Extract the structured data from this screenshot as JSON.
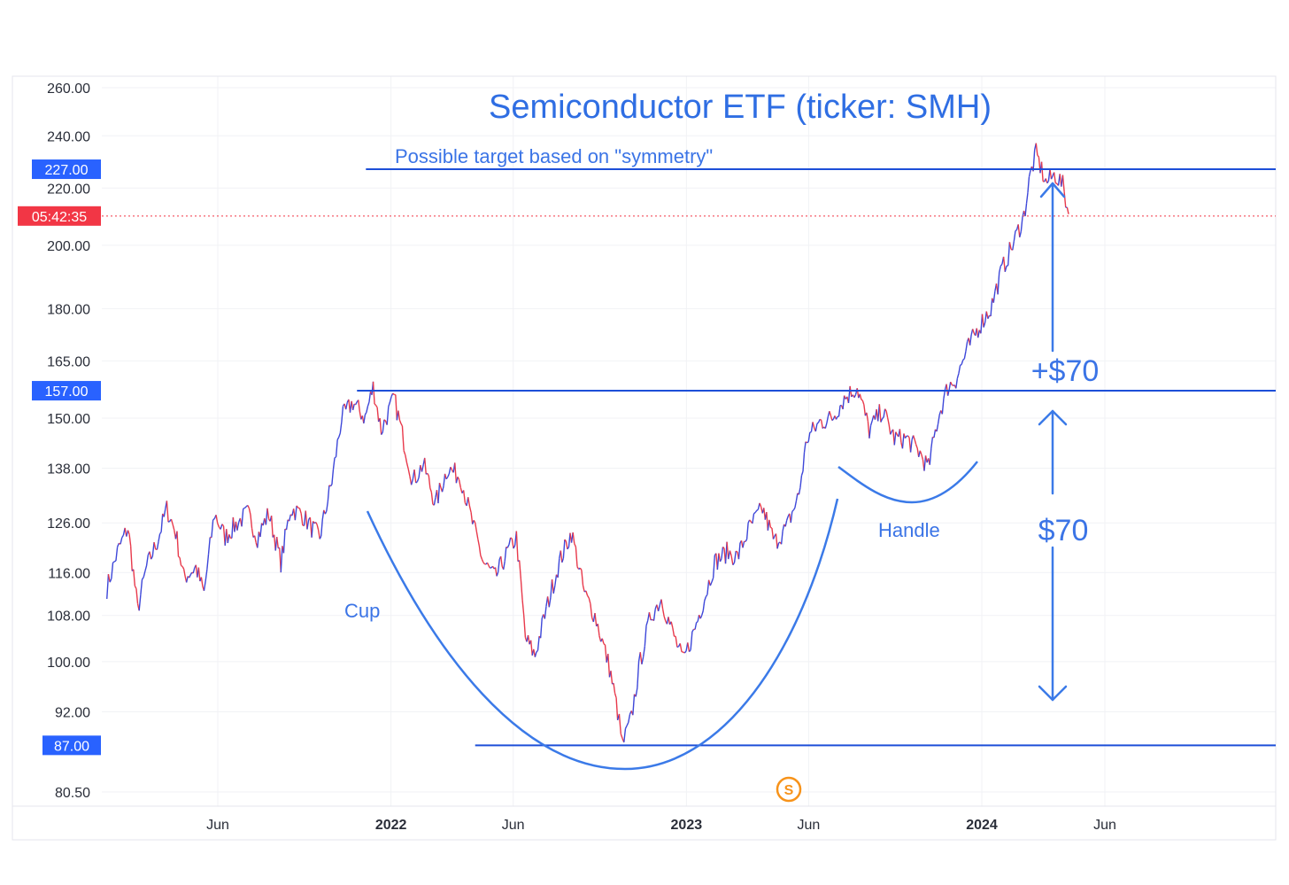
{
  "chart_data": {
    "type": "line",
    "title": "Semiconductor ETF (ticker: SMH)",
    "xlabel": "",
    "ylabel": "",
    "y_scale": "log",
    "ylim": [
      78,
      268
    ],
    "y_ticks": [
      "260.00",
      "240.00",
      "220.00",
      "200.00",
      "180.00",
      "165.00",
      "150.00",
      "138.00",
      "126.00",
      "116.00",
      "108.00",
      "100.00",
      "92.00",
      "80.50"
    ],
    "x_ticks": [
      {
        "label": "Jun",
        "date": "2021-06-01",
        "bold": false
      },
      {
        "label": "2022",
        "date": "2022-01-01",
        "bold": true
      },
      {
        "label": "Jun",
        "date": "2022-06-01",
        "bold": false
      },
      {
        "label": "2023",
        "date": "2023-01-01",
        "bold": true
      },
      {
        "label": "Jun",
        "date": "2023-06-01",
        "bold": false
      },
      {
        "label": "2024",
        "date": "2024-01-01",
        "bold": true
      },
      {
        "label": "Jun",
        "date": "2024-06-01",
        "bold": false
      }
    ],
    "xlim": [
      "2021-01-06",
      "2024-12-20"
    ],
    "grid": true,
    "series_colors": [
      "#3d47d9",
      "#e8394b"
    ],
    "series": [
      {
        "values": [
          [
            "2021-01-15",
            113
          ],
          [
            "2021-01-28",
            120
          ],
          [
            "2021-02-10",
            125
          ],
          [
            "2021-02-22",
            109
          ],
          [
            "2021-03-05",
            117
          ],
          [
            "2021-03-18",
            122
          ],
          [
            "2021-03-30",
            129
          ],
          [
            "2021-04-10",
            124
          ],
          [
            "2021-04-20",
            115
          ],
          [
            "2021-05-05",
            117
          ],
          [
            "2021-05-15",
            112
          ],
          [
            "2021-05-28",
            128
          ],
          [
            "2021-06-10",
            123
          ],
          [
            "2021-06-25",
            126
          ],
          [
            "2021-07-08",
            128
          ],
          [
            "2021-07-20",
            123
          ],
          [
            "2021-08-03",
            128
          ],
          [
            "2021-08-18",
            118
          ],
          [
            "2021-08-30",
            129
          ],
          [
            "2021-09-12",
            128
          ],
          [
            "2021-09-25",
            125
          ],
          [
            "2021-10-05",
            123
          ],
          [
            "2021-10-20",
            135
          ],
          [
            "2021-11-01",
            150
          ],
          [
            "2021-11-15",
            154
          ],
          [
            "2021-11-30",
            150
          ],
          [
            "2021-12-10",
            158
          ],
          [
            "2021-12-20",
            147
          ],
          [
            "2022-01-05",
            155
          ],
          [
            "2022-01-15",
            146
          ],
          [
            "2022-01-28",
            135
          ],
          [
            "2022-02-10",
            139
          ],
          [
            "2022-02-25",
            130
          ],
          [
            "2022-03-12",
            138
          ],
          [
            "2022-03-28",
            136
          ],
          [
            "2022-04-10",
            127
          ],
          [
            "2022-04-25",
            118
          ],
          [
            "2022-05-10",
            115
          ],
          [
            "2022-05-25",
            120
          ],
          [
            "2022-06-05",
            123
          ],
          [
            "2022-06-16",
            104
          ],
          [
            "2022-06-28",
            101
          ],
          [
            "2022-07-10",
            108
          ],
          [
            "2022-07-28",
            118
          ],
          [
            "2022-08-12",
            124
          ],
          [
            "2022-08-28",
            112
          ],
          [
            "2022-09-10",
            108
          ],
          [
            "2022-09-28",
            99
          ],
          [
            "2022-10-08",
            92
          ],
          [
            "2022-10-14",
            87
          ],
          [
            "2022-10-25",
            91
          ],
          [
            "2022-11-05",
            100
          ],
          [
            "2022-11-18",
            108
          ],
          [
            "2022-12-01",
            111
          ],
          [
            "2022-12-15",
            105
          ],
          [
            "2022-12-28",
            100
          ],
          [
            "2023-01-10",
            105
          ],
          [
            "2023-01-25",
            112
          ],
          [
            "2023-02-05",
            118
          ],
          [
            "2023-02-20",
            120
          ],
          [
            "2023-03-05",
            119
          ],
          [
            "2023-03-20",
            125
          ],
          [
            "2023-04-05",
            129
          ],
          [
            "2023-04-20",
            122
          ],
          [
            "2023-05-05",
            125
          ],
          [
            "2023-05-20",
            132
          ],
          [
            "2023-05-30",
            145
          ],
          [
            "2023-06-15",
            149
          ],
          [
            "2023-06-30",
            150
          ],
          [
            "2023-07-15",
            155
          ],
          [
            "2023-07-31",
            158
          ],
          [
            "2023-08-15",
            147
          ],
          [
            "2023-08-31",
            152
          ],
          [
            "2023-09-15",
            145
          ],
          [
            "2023-09-30",
            145
          ],
          [
            "2023-10-15",
            142
          ],
          [
            "2023-10-27",
            138
          ],
          [
            "2023-11-08",
            150
          ],
          [
            "2023-11-20",
            158
          ],
          [
            "2023-11-30",
            160
          ],
          [
            "2023-12-14",
            168
          ],
          [
            "2023-12-29",
            175
          ],
          [
            "2024-01-12",
            180
          ],
          [
            "2024-01-26",
            192
          ],
          [
            "2024-02-08",
            200
          ],
          [
            "2024-02-22",
            210
          ],
          [
            "2024-03-01",
            225
          ],
          [
            "2024-03-08",
            233
          ],
          [
            "2024-03-20",
            222
          ],
          [
            "2024-04-01",
            225
          ],
          [
            "2024-04-10",
            221
          ],
          [
            "2024-04-19",
            208
          ]
        ]
      }
    ],
    "price_labels": [
      {
        "text": "227.00",
        "value": 227
      },
      {
        "text": "157.00",
        "value": 157
      },
      {
        "text": "87.00",
        "value": 87
      },
      {
        "text": "05:42:35",
        "value": 210
      }
    ],
    "horizontal_lines": [
      {
        "value": 227,
        "from": "2021-12-01"
      },
      {
        "value": 157,
        "from": "2021-11-20"
      },
      {
        "value": 87,
        "from": "2022-04-15"
      }
    ],
    "countdown_line_value": 210,
    "annotations": {
      "target_note": "Possible target based on \"symmetry\"",
      "cup": "Cup",
      "handle": "Handle",
      "move_lower": "$70",
      "move_upper": "+$70"
    },
    "badge_icon": "s-circle-icon",
    "badge_letter": "S",
    "colors": {
      "accent_blue": "#2962ff",
      "line_blue": "#1d4fd8",
      "annotation_blue": "#3b74e6",
      "countdown_red": "#f23645",
      "badge_orange": "#f7931a"
    }
  }
}
